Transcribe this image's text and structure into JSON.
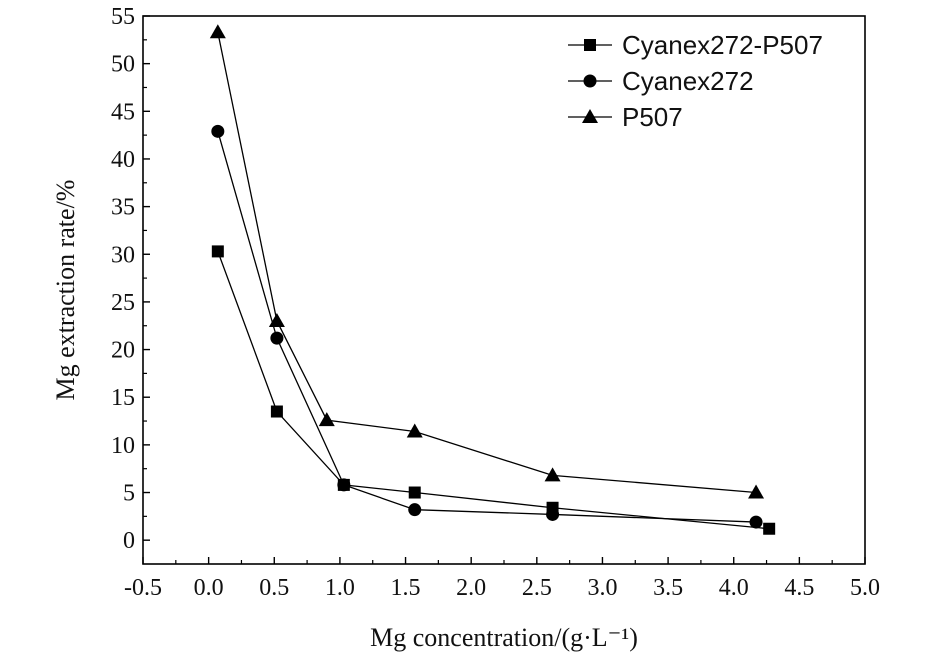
{
  "chart_data": {
    "type": "line",
    "xlabel": "Mg concentration/(g·L⁻¹)",
    "ylabel": "Mg extraction rate/%",
    "xlim": [
      -0.5,
      5.0
    ],
    "ylim": [
      -2.5,
      55
    ],
    "xticks": [
      -0.5,
      0.0,
      0.5,
      1.0,
      1.5,
      2.0,
      2.5,
      3.0,
      3.5,
      4.0,
      4.5,
      5.0
    ],
    "xtick_labels": [
      "-0.5",
      "0.0",
      "0.5",
      "1.0",
      "1.5",
      "2.0",
      "2.5",
      "3.0",
      "3.5",
      "4.0",
      "4.5",
      "5.0"
    ],
    "yticks": [
      0,
      5,
      10,
      15,
      20,
      25,
      30,
      35,
      40,
      45,
      50,
      55
    ],
    "ytick_labels": [
      "0",
      "5",
      "10",
      "15",
      "20",
      "25",
      "30",
      "35",
      "40",
      "45",
      "50",
      "55"
    ],
    "grid": false,
    "legend_position": "top-right",
    "series": [
      {
        "name": "Cyanex272-P507",
        "marker": "square",
        "color": "#000000",
        "x": [
          0.07,
          0.52,
          1.03,
          1.57,
          2.62,
          4.27
        ],
        "y": [
          30.3,
          13.5,
          5.8,
          5.0,
          3.4,
          1.2
        ]
      },
      {
        "name": "Cyanex272",
        "marker": "circle",
        "color": "#000000",
        "x": [
          0.07,
          0.52,
          1.03,
          1.57,
          2.62,
          4.17
        ],
        "y": [
          42.9,
          21.2,
          5.8,
          3.2,
          2.7,
          1.9
        ]
      },
      {
        "name": "P507",
        "marker": "triangle",
        "color": "#000000",
        "x": [
          0.07,
          0.52,
          0.9,
          1.57,
          2.62,
          4.17
        ],
        "y": [
          53.3,
          23.0,
          12.6,
          11.4,
          6.8,
          5.0
        ]
      }
    ]
  }
}
